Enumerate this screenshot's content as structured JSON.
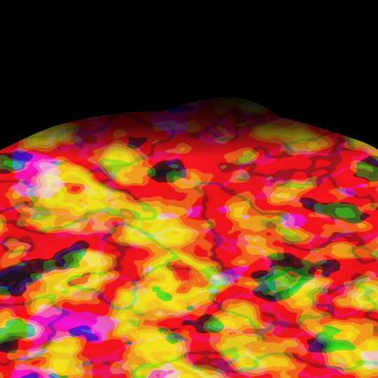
{
  "scene": {
    "description_kind": "rendered-contour-terrain",
    "background_color": "#000000",
    "palette": [
      "#8a1fd6",
      "#1e6fd9",
      "#3fc9c4",
      "#63e0a3",
      "#f5c518",
      "#f29a1a",
      "#ee5a1e",
      "#e8141b",
      "#a3145a",
      "#5b10c8"
    ]
  }
}
